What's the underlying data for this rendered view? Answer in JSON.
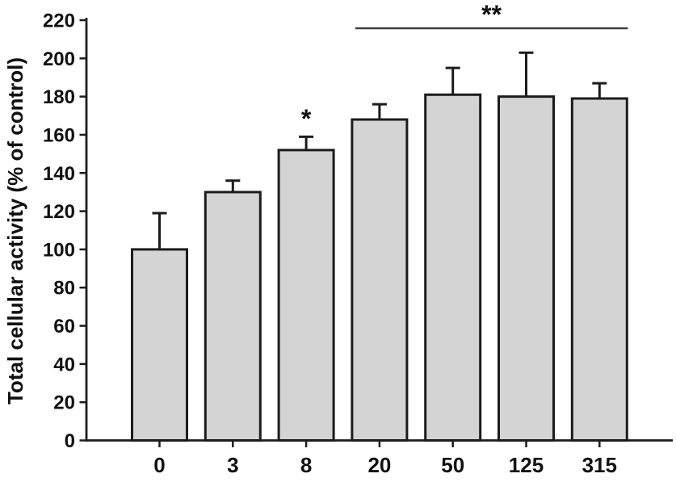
{
  "chart_data": {
    "type": "bar",
    "title": "",
    "xlabel": "",
    "ylabel": "Total cellular activity (% of control)",
    "categories": [
      "0",
      "3",
      "8",
      "20",
      "50",
      "125",
      "315"
    ],
    "values": [
      100,
      130,
      152,
      168,
      181,
      180,
      179
    ],
    "errors_plus": [
      19,
      6,
      7,
      8,
      14,
      23,
      8
    ],
    "ylim": [
      0,
      220
    ],
    "ytick_step": 20,
    "ytick_labels": [
      "0",
      "20",
      "40",
      "60",
      "80",
      "100",
      "120",
      "140",
      "160",
      "180",
      "200",
      "220"
    ],
    "grid": "off",
    "legend": "none",
    "colors": {
      "bar_fill": "#d4d4d4",
      "bar_stroke": "#1c1c1c",
      "axis": "#1c1c1c",
      "text": "#111111",
      "bracket_line": "#404040"
    },
    "significance": {
      "star": {
        "text": "*",
        "category": "8",
        "category_index": 2
      },
      "bracket": {
        "text": "**",
        "from_category": "20",
        "to_category": "315",
        "from_index": 3,
        "to_index": 6
      }
    }
  }
}
